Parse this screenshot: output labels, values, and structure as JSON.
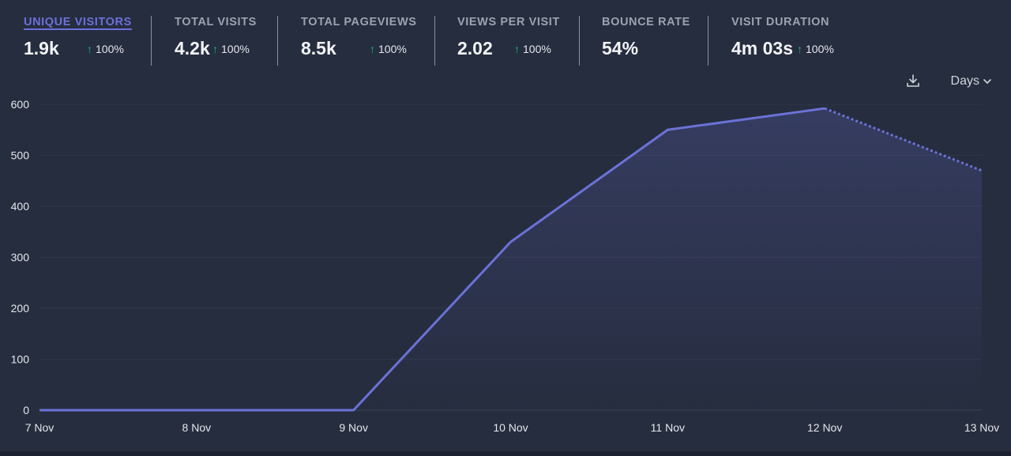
{
  "stats": [
    {
      "label": "Unique Visitors",
      "value": "1.9k",
      "change": "100%",
      "active": true
    },
    {
      "label": "Total Visits",
      "value": "4.2k",
      "change": "100%"
    },
    {
      "label": "Total Pageviews",
      "value": "8.5k",
      "change": "100%"
    },
    {
      "label": "Views Per Visit",
      "value": "2.02",
      "change": "100%"
    },
    {
      "label": "Bounce Rate",
      "value": "54%",
      "change": ""
    },
    {
      "label": "Visit Duration",
      "value": "4m 03s",
      "change": "100%"
    }
  ],
  "toolbar": {
    "download_icon": "download-icon",
    "interval_label": "Days",
    "interval_icon": "chevron-down-icon"
  },
  "colors": {
    "background": "#262d3f",
    "line": "#6b72d6",
    "positive": "#10b981",
    "active_label": "#6c70d9"
  },
  "chart_data": {
    "type": "area",
    "categories": [
      "7 Nov",
      "8 Nov",
      "9 Nov",
      "10 Nov",
      "11 Nov",
      "12 Nov",
      "13 Nov"
    ],
    "series": [
      {
        "values": [
          0,
          0,
          0,
          330,
          550,
          592,
          470
        ]
      }
    ],
    "dashed_from_index": 5,
    "yticks": [
      "0",
      "100",
      "200",
      "300",
      "400",
      "500",
      "600"
    ],
    "ylim": [
      0,
      600
    ],
    "grid": true
  }
}
